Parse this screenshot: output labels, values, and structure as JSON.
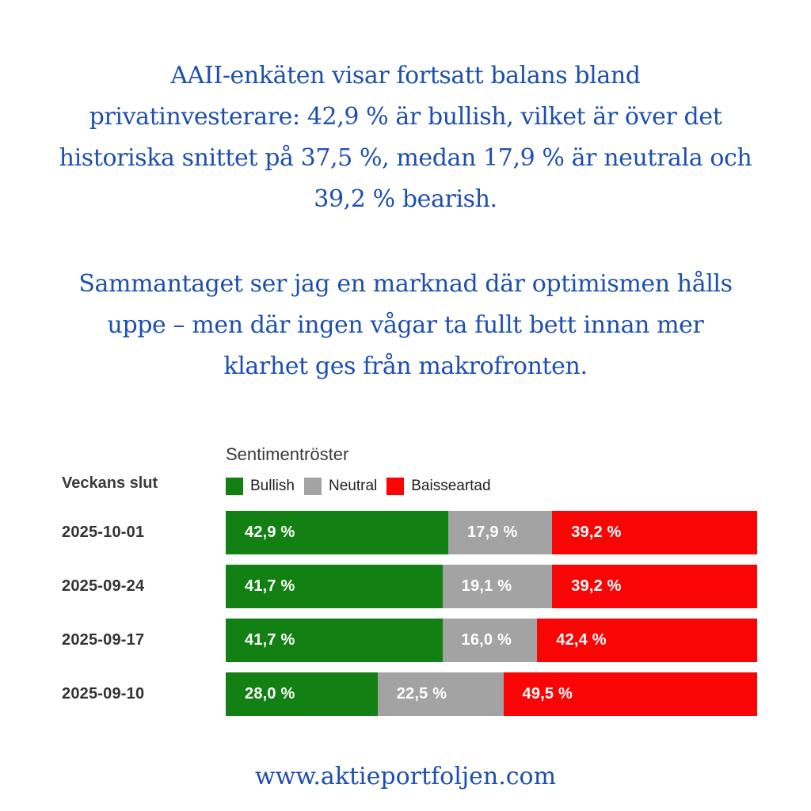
{
  "colors": {
    "accent_blue": "#1d4fb0",
    "bullish_green": "#128012",
    "neutral_gray": "#a3a3a3",
    "bearish_red": "#f90505",
    "heading_gray": "#3b3b3b"
  },
  "intro": {
    "paragraph1_lines": [
      "AAII-enkäten visar fortsatt balans bland",
      "privatinvesterare: 42,9 % är bullish, vilket är över det",
      "historiska snittet på 37,5 %, medan 17,9 % är neutrala och",
      "39,2 % bearish."
    ],
    "paragraph2_lines": [
      "Sammantaget ser jag en marknad där optimismen hålls",
      "uppe – men där ingen vågar ta fullt bett innan mer",
      "klarhet ges från makrofronten."
    ]
  },
  "chart": {
    "title": "Sentimentröster",
    "row_header": "Veckans slut"
  },
  "chart_data": {
    "type": "bar",
    "stacked": true,
    "orientation": "horizontal",
    "title": "Sentimentröster",
    "categories": [
      "2025-10-01",
      "2025-09-24",
      "2025-09-17",
      "2025-09-10"
    ],
    "series": [
      {
        "name": "Bullish",
        "color": "#128012",
        "values": [
          42.9,
          41.7,
          41.7,
          28.0
        ]
      },
      {
        "name": "Neutral",
        "color": "#a3a3a3",
        "values": [
          17.9,
          19.1,
          16.0,
          22.5
        ]
      },
      {
        "name": "Baisseartad",
        "color": "#f90505",
        "values": [
          39.2,
          39.2,
          42.4,
          49.5
        ]
      }
    ],
    "value_labels": [
      [
        "42,9 %",
        "17,9 %",
        "39,2 %"
      ],
      [
        "41,7 %",
        "19,1 %",
        "39,2 %"
      ],
      [
        "41,7 %",
        "16,0 %",
        "42,4 %"
      ],
      [
        "28,0 %",
        "22,5 %",
        "49,5 %"
      ]
    ],
    "xlim": [
      0,
      100
    ],
    "xlabel": "",
    "ylabel": "Veckans slut",
    "legend_position": "top",
    "grid": false
  },
  "footer": {
    "url": "www.aktieportfoljen.com"
  }
}
